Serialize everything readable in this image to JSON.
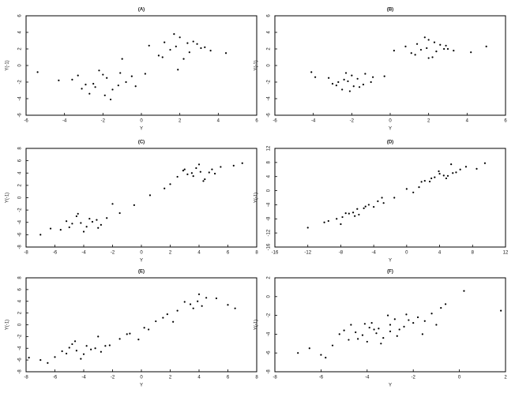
{
  "chart_data": [
    {
      "type": "scatter",
      "title": "(A)",
      "x_label": "Y",
      "y_label": "Y(-1)",
      "color": "#000000",
      "xlim": [
        -6,
        6
      ],
      "ylim": [
        -6,
        6
      ],
      "xticks": [
        -6,
        -4,
        -2,
        0,
        2,
        4,
        6
      ],
      "yticks": [
        -6,
        -4,
        -2,
        0,
        2,
        4,
        6
      ],
      "x": [
        -2.5,
        -1.8,
        -3.1,
        -1.2,
        -2.0,
        -0.8,
        -3.6,
        -2.7,
        -1.5,
        -2.2,
        -4.3,
        -0.5,
        -1.9,
        -2.9,
        -1.1,
        -3.3,
        -2.4,
        -0.3,
        -5.4,
        -1.6,
        1.8,
        2.5,
        1.2,
        3.1,
        2.0,
        0.9,
        2.7,
        1.5,
        3.6,
        2.2,
        0.4,
        1.7,
        2.9,
        1.1,
        3.3,
        2.4,
        4.4,
        -1.0,
        0.2,
        1.9
      ],
      "y": [
        -2.2,
        -1.5,
        -2.8,
        -2.4,
        -1.1,
        -2.0,
        -1.7,
        -3.4,
        -2.9,
        -0.6,
        -1.8,
        -1.3,
        -3.6,
        -2.3,
        -0.9,
        -1.2,
        -2.6,
        -2.5,
        -0.8,
        -4.1,
        2.3,
        1.6,
        2.8,
        2.1,
        3.4,
        1.2,
        2.9,
        1.9,
        1.8,
        0.8,
        2.4,
        3.8,
        2.6,
        1.0,
        2.2,
        2.7,
        1.5,
        0.8,
        -1.0,
        -0.5
      ]
    },
    {
      "type": "scatter",
      "title": "(B)",
      "x_label": "Y",
      "y_label": "Y(-1)",
      "color": "#000000",
      "xlim": [
        -6,
        6
      ],
      "ylim": [
        -6,
        6
      ],
      "xticks": [
        -6,
        -4,
        -2,
        0,
        2,
        4,
        6
      ],
      "yticks": [
        -6,
        -4,
        -2,
        0,
        2,
        4,
        6
      ],
      "x": [
        -2.2,
        -1.7,
        -2.8,
        -1.4,
        -2.0,
        -1.0,
        -3.2,
        -2.5,
        -1.6,
        -2.3,
        -3.9,
        -0.9,
        -2.1,
        -2.7,
        -1.3,
        -3.0,
        -1.9,
        -2.4,
        -4.1,
        -0.3,
        1.9,
        2.4,
        1.4,
        2.8,
        2.0,
        1.1,
        2.6,
        1.6,
        3.3,
        2.2,
        0.8,
        1.8,
        2.9,
        1.3,
        3.0,
        2.3,
        4.2,
        2.0,
        5.0,
        0.2
      ],
      "y": [
        -1.9,
        -1.6,
        -2.4,
        -2.3,
        -1.2,
        -2.0,
        -1.5,
        -2.9,
        -2.6,
        -0.9,
        -1.4,
        -1.4,
        -3.1,
        -2.0,
        -1.0,
        -2.2,
        -2.5,
        -1.7,
        -0.8,
        -1.3,
        2.1,
        1.7,
        2.6,
        2.0,
        3.1,
        1.5,
        2.5,
        1.9,
        1.8,
        1.0,
        2.3,
        3.4,
        2.4,
        1.3,
        2.0,
        2.8,
        1.6,
        0.9,
        2.3,
        1.8
      ]
    },
    {
      "type": "scatter",
      "title": "(C)",
      "x_label": "Y",
      "y_label": "Y(-1)",
      "color": "#000000",
      "xlim": [
        -8,
        8
      ],
      "ylim": [
        -8,
        8
      ],
      "xticks": [
        -8,
        -6,
        -4,
        -2,
        0,
        2,
        4,
        6,
        8
      ],
      "yticks": [
        -8,
        -6,
        -4,
        -2,
        0,
        2,
        4,
        6,
        8
      ],
      "x": [
        -4.2,
        -3.6,
        -5.0,
        -3.1,
        -4.5,
        -2.8,
        -5.6,
        -4.0,
        -3.4,
        -4.8,
        -6.3,
        -2.4,
        -4.4,
        -3.8,
        -5.2,
        -3.0,
        -1.5,
        -0.5,
        0.6,
        1.6,
        4.1,
        3.6,
        4.9,
        3.2,
        4.4,
        2.9,
        5.5,
        4.0,
        3.5,
        4.7,
        6.4,
        2.5,
        4.3,
        3.8,
        5.1,
        3.0,
        -7.0,
        2.0,
        -2.0,
        7.0
      ],
      "y": [
        -4.1,
        -3.4,
        -4.8,
        -3.6,
        -3.0,
        -4.4,
        -5.2,
        -5.5,
        -3.9,
        -4.2,
        -5.0,
        -3.3,
        -2.6,
        -4.7,
        -3.8,
        -4.9,
        -2.5,
        -1.2,
        0.4,
        1.5,
        4.2,
        3.5,
        4.6,
        3.8,
        3.0,
        4.4,
        5.0,
        5.4,
        4.0,
        4.1,
        5.2,
        3.4,
        2.7,
        4.8,
        3.9,
        4.6,
        -6.0,
        2.2,
        -1.0,
        5.6
      ]
    },
    {
      "type": "scatter",
      "title": "(D)",
      "x_label": "Y",
      "y_label": "Y(-1)",
      "color": "#000000",
      "xlim": [
        -16,
        12
      ],
      "ylim": [
        -16,
        12
      ],
      "xticks": [
        -16,
        -12,
        -8,
        -4,
        0,
        4,
        8,
        12
      ],
      "yticks": [
        -16,
        -12,
        -8,
        -4,
        0,
        4,
        8,
        12
      ],
      "x": [
        -6.5,
        -5.2,
        -7.8,
        -4.0,
        -6.0,
        -3.5,
        -8.5,
        -5.8,
        -4.6,
        -7.0,
        -9.5,
        -2.8,
        -6.3,
        -5.0,
        -7.4,
        -12.0,
        -10.0,
        -1.5,
        0.0,
        1.5,
        4.5,
        3.4,
        5.6,
        2.8,
        4.0,
        2.2,
        6.5,
        3.9,
        5.0,
        7.2,
        8.5,
        1.8,
        4.8,
        3.0,
        6.0,
        9.5,
        -3.0,
        0.8,
        -8.0,
        5.4
      ],
      "y": [
        -6.2,
        -5.0,
        -7.5,
        -4.6,
        -5.2,
        -3.0,
        -8.0,
        -6.8,
        -4.0,
        -6.5,
        -8.6,
        -3.5,
        -7.2,
        -4.5,
        -6.4,
        -10.5,
        -9.0,
        -2.0,
        0.5,
        1.0,
        4.3,
        3.8,
        5.0,
        2.6,
        4.8,
        2.8,
        6.0,
        5.5,
        4.2,
        6.8,
        6.2,
        2.5,
        3.5,
        3.5,
        5.2,
        7.8,
        -2.0,
        -0.5,
        -9.5,
        7.5
      ]
    },
    {
      "type": "scatter",
      "title": "(E)",
      "x_label": "Y",
      "y_label": "Y(-1)",
      "color": "#000000",
      "xlim": [
        -8,
        8
      ],
      "ylim": [
        -8,
        8
      ],
      "xticks": [
        -8,
        -6,
        -4,
        -2,
        0,
        2,
        4,
        6,
        8
      ],
      "yticks": [
        -8,
        -6,
        -4,
        -2,
        0,
        2,
        4,
        6,
        8
      ],
      "x": [
        -4.5,
        -3.8,
        -5.2,
        -3.2,
        -4.8,
        -2.8,
        -6.0,
        -4.2,
        -3.5,
        -5.5,
        -7.0,
        -2.2,
        -4.6,
        -4.0,
        -5.0,
        -1.5,
        -0.8,
        0.2,
        1.0,
        1.8,
        3.9,
        3.4,
        4.5,
        3.0,
        4.2,
        5.2,
        4.0,
        6.0,
        2.5,
        -1.0,
        0.5,
        2.2,
        -2.5,
        -3.0,
        -6.5,
        -7.8,
        3.6,
        1.5,
        -0.2,
        6.5
      ],
      "y": [
        -4.4,
        -3.6,
        -4.9,
        -4.0,
        -3.3,
        -4.6,
        -5.5,
        -5.8,
        -4.2,
        -4.5,
        -6.0,
        -3.5,
        -2.8,
        -5.0,
        -3.9,
        -2.4,
        -1.5,
        -0.5,
        0.6,
        1.8,
        4.0,
        3.5,
        4.6,
        3.9,
        3.2,
        4.5,
        5.2,
        3.4,
        2.4,
        -1.6,
        -0.8,
        0.5,
        -3.6,
        -2.0,
        -6.5,
        -5.6,
        2.8,
        1.2,
        -2.5,
        2.8
      ]
    },
    {
      "type": "scatter",
      "title": "(F)",
      "x_label": "Y",
      "y_label": "Y(-1)",
      "color": "#000000",
      "xlim": [
        -8,
        2
      ],
      "ylim": [
        -8,
        2
      ],
      "xticks": [
        -8,
        -6,
        -4,
        -2,
        0,
        2
      ],
      "yticks": [
        -8,
        -6,
        -4,
        -2,
        0,
        2
      ],
      "x": [
        -3.5,
        -3.0,
        -4.2,
        -2.6,
        -3.8,
        -2.2,
        -4.8,
        -3.3,
        -2.8,
        -4.5,
        -5.5,
        -1.8,
        -3.6,
        -3.1,
        -4.0,
        -6.5,
        -6.0,
        -1.2,
        -0.6,
        0.2,
        -5.0,
        -2.4,
        -3.9,
        -2.0,
        -4.4,
        -5.2,
        -1.5,
        -3.0,
        -2.7,
        -4.1,
        -7.0,
        -0.8,
        -3.4,
        -1.0,
        1.8,
        -5.8,
        -2.3,
        -4.7,
        -3.7,
        -1.6
      ],
      "y": [
        -3.4,
        -3.0,
        -4.1,
        -3.5,
        -2.8,
        -2.5,
        -4.6,
        -4.4,
        -2.4,
        -3.8,
        -5.2,
        -2.2,
        -3.9,
        -2.0,
        -4.8,
        -5.5,
        -6.2,
        -1.8,
        -0.8,
        0.6,
        -3.6,
        -3.2,
        -3.3,
        -2.8,
        -4.5,
        -4.0,
        -2.6,
        -3.7,
        -4.2,
        -2.9,
        -6.0,
        -1.2,
        -5.0,
        -3.0,
        -1.5,
        -6.5,
        -1.9,
        -3.0,
        -3.5,
        -4.0
      ]
    }
  ]
}
